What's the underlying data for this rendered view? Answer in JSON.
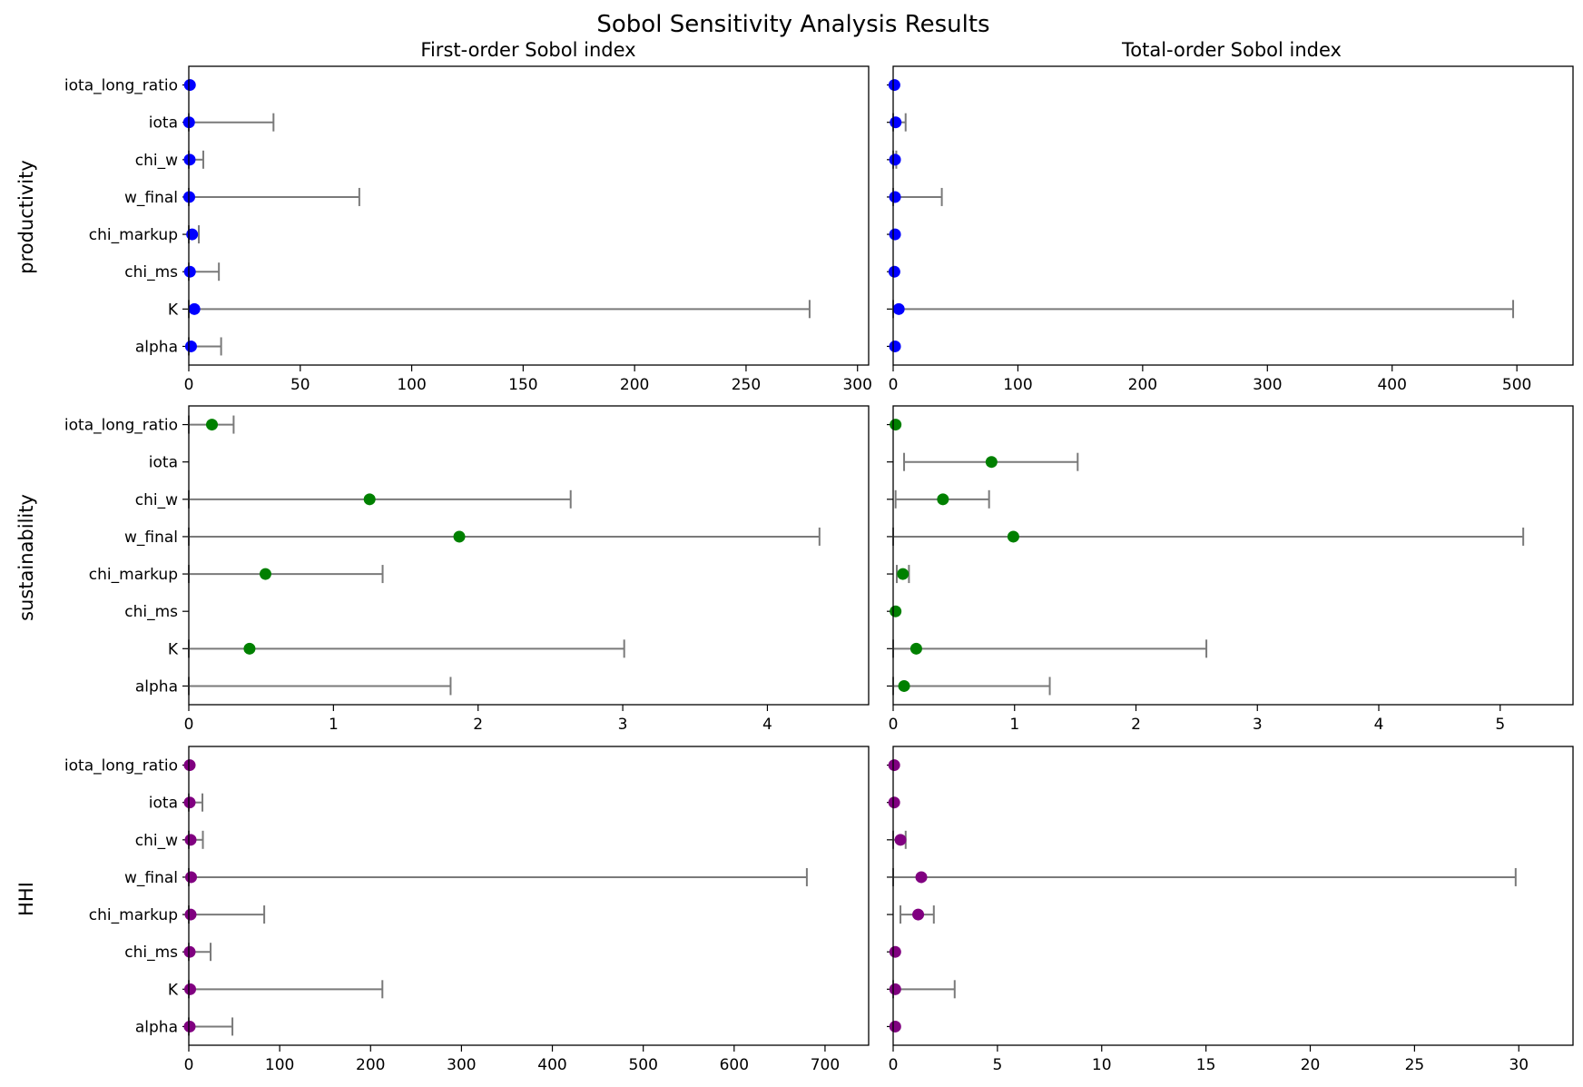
{
  "chart_data": {
    "type": "scatter",
    "title": "Sobol Sensitivity Analysis Results",
    "column_titles": [
      "First-order Sobol index",
      "Total-order Sobol index"
    ],
    "row_labels": [
      "productivity",
      "sustainability",
      "HHI"
    ],
    "parameters": [
      "alpha",
      "K",
      "chi_ms",
      "chi_markup",
      "w_final",
      "chi_w",
      "iota",
      "iota_long_ratio"
    ],
    "panels": [
      {
        "row": "productivity",
        "column": "First-order Sobol index",
        "color": "#0000ff",
        "xlim": [
          0,
          305
        ],
        "xticks": [
          0,
          50,
          100,
          150,
          200,
          250,
          300
        ],
        "points": [
          {
            "param": "alpha",
            "value": 1.0,
            "err_low": 0,
            "err_high": 14.5
          },
          {
            "param": "K",
            "value": 2.5,
            "err_low": 0,
            "err_high": 278.5
          },
          {
            "param": "chi_ms",
            "value": 0.5,
            "err_low": 0,
            "err_high": 13.5
          },
          {
            "param": "chi_markup",
            "value": 1.5,
            "err_low": 0,
            "err_high": 4.5
          },
          {
            "param": "w_final",
            "value": 0.2,
            "err_low": 0,
            "err_high": 76.5
          },
          {
            "param": "chi_w",
            "value": 0.4,
            "err_low": 0,
            "err_high": 6.5
          },
          {
            "param": "iota",
            "value": 0.1,
            "err_low": 0,
            "err_high": 38.0
          },
          {
            "param": "iota_long_ratio",
            "value": 0.5,
            "err_low": null,
            "err_high": null
          }
        ]
      },
      {
        "row": "productivity",
        "column": "Total-order Sobol index",
        "color": "#0000ff",
        "xlim": [
          0,
          545
        ],
        "xticks": [
          0,
          100,
          200,
          300,
          400,
          500
        ],
        "points": [
          {
            "param": "alpha",
            "value": 1.5,
            "err_low": null,
            "err_high": null
          },
          {
            "param": "K",
            "value": 4.5,
            "err_low": 0,
            "err_high": 497.0
          },
          {
            "param": "chi_ms",
            "value": 1.0,
            "err_low": null,
            "err_high": null
          },
          {
            "param": "chi_markup",
            "value": 1.5,
            "err_low": null,
            "err_high": null
          },
          {
            "param": "w_final",
            "value": 1.5,
            "err_low": 0,
            "err_high": 39.0
          },
          {
            "param": "chi_w",
            "value": 1.5,
            "err_low": 0,
            "err_high": 2.5
          },
          {
            "param": "iota",
            "value": 2.0,
            "err_low": 0,
            "err_high": 10.0
          },
          {
            "param": "iota_long_ratio",
            "value": 1.0,
            "err_low": null,
            "err_high": null
          }
        ]
      },
      {
        "row": "sustainability",
        "column": "First-order Sobol index",
        "color": "#008000",
        "xlim": [
          0,
          4.7
        ],
        "xticks": [
          0,
          1,
          2,
          3,
          4
        ],
        "points": [
          {
            "param": "alpha",
            "value": null,
            "err_low": 0,
            "err_high": 1.81
          },
          {
            "param": "K",
            "value": 0.42,
            "err_low": 0,
            "err_high": 3.01
          },
          {
            "param": "chi_ms",
            "value": null,
            "err_low": null,
            "err_high": null
          },
          {
            "param": "chi_markup",
            "value": 0.53,
            "err_low": 0,
            "err_high": 1.34
          },
          {
            "param": "w_final",
            "value": 1.87,
            "err_low": 0,
            "err_high": 4.36
          },
          {
            "param": "chi_w",
            "value": 1.25,
            "err_low": 0,
            "err_high": 2.64
          },
          {
            "param": "iota",
            "value": null,
            "err_low": null,
            "err_high": null
          },
          {
            "param": "iota_long_ratio",
            "value": 0.16,
            "err_low": 0,
            "err_high": 0.31
          }
        ]
      },
      {
        "row": "sustainability",
        "column": "Total-order Sobol index",
        "color": "#008000",
        "xlim": [
          0,
          5.6
        ],
        "xticks": [
          0,
          1,
          2,
          3,
          4,
          5
        ],
        "points": [
          {
            "param": "alpha",
            "value": 0.09,
            "err_low": 0,
            "err_high": 1.29
          },
          {
            "param": "K",
            "value": 0.19,
            "err_low": 0,
            "err_high": 2.58
          },
          {
            "param": "chi_ms",
            "value": 0.02,
            "err_low": null,
            "err_high": null
          },
          {
            "param": "chi_markup",
            "value": 0.08,
            "err_low": 0.03,
            "err_high": 0.13
          },
          {
            "param": "w_final",
            "value": 0.99,
            "err_low": 0,
            "err_high": 5.19
          },
          {
            "param": "chi_w",
            "value": 0.41,
            "err_low": 0.02,
            "err_high": 0.79
          },
          {
            "param": "iota",
            "value": 0.81,
            "err_low": 0.09,
            "err_high": 1.52
          },
          {
            "param": "iota_long_ratio",
            "value": 0.02,
            "err_low": null,
            "err_high": null
          }
        ]
      },
      {
        "row": "HHI",
        "column": "First-order Sobol index",
        "color": "#800080",
        "xlim": [
          0,
          748
        ],
        "xticks": [
          0,
          100,
          200,
          300,
          400,
          500,
          600,
          700
        ],
        "points": [
          {
            "param": "alpha",
            "value": 1.0,
            "err_low": 0,
            "err_high": 48.0
          },
          {
            "param": "K",
            "value": 1.5,
            "err_low": 0,
            "err_high": 213.0
          },
          {
            "param": "chi_ms",
            "value": 1.0,
            "err_low": 0,
            "err_high": 24.0
          },
          {
            "param": "chi_markup",
            "value": 2.0,
            "err_low": 0,
            "err_high": 83.0
          },
          {
            "param": "w_final",
            "value": 2.5,
            "err_low": 0,
            "err_high": 680.0
          },
          {
            "param": "chi_w",
            "value": 2.0,
            "err_low": 0,
            "err_high": 15.5
          },
          {
            "param": "iota",
            "value": 1.0,
            "err_low": 0,
            "err_high": 15.0
          },
          {
            "param": "iota_long_ratio",
            "value": 1.0,
            "err_low": null,
            "err_high": null
          }
        ]
      },
      {
        "row": "HHI",
        "column": "Total-order Sobol index",
        "color": "#800080",
        "xlim": [
          0,
          32.6
        ],
        "xticks": [
          0,
          5,
          10,
          15,
          20,
          25,
          30
        ],
        "points": [
          {
            "param": "alpha",
            "value": 0.1,
            "err_low": null,
            "err_high": null
          },
          {
            "param": "K",
            "value": 0.1,
            "err_low": 0,
            "err_high": 2.95
          },
          {
            "param": "chi_ms",
            "value": 0.1,
            "err_low": null,
            "err_high": null
          },
          {
            "param": "chi_markup",
            "value": 1.2,
            "err_low": 0.35,
            "err_high": 1.95
          },
          {
            "param": "w_final",
            "value": 1.35,
            "err_low": 0,
            "err_high": 29.85
          },
          {
            "param": "chi_w",
            "value": 0.35,
            "err_low": 0,
            "err_high": 0.6
          },
          {
            "param": "iota",
            "value": 0.05,
            "err_low": null,
            "err_high": null
          },
          {
            "param": "iota_long_ratio",
            "value": 0.05,
            "err_low": null,
            "err_high": null
          }
        ]
      }
    ],
    "error_bar_color": "#7a7a7a",
    "grid": false,
    "legend": false
  }
}
